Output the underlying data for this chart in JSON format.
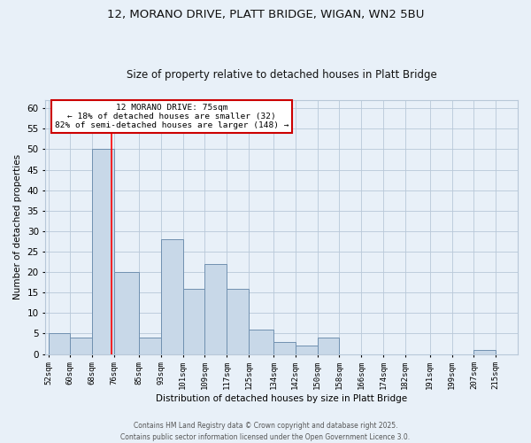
{
  "title1": "12, MORANO DRIVE, PLATT BRIDGE, WIGAN, WN2 5BU",
  "title2": "Size of property relative to detached houses in Platt Bridge",
  "xlabel": "Distribution of detached houses by size in Platt Bridge",
  "ylabel": "Number of detached properties",
  "bar_color": "#c8d8e8",
  "bar_edge_color": "#7090b0",
  "grid_color": "#b8c8d8",
  "background_color": "#e8f0f8",
  "red_line_x": 75,
  "annotation_text": "12 MORANO DRIVE: 75sqm\n← 18% of detached houses are smaller (32)\n82% of semi-detached houses are larger (148) →",
  "annotation_box_color": "#ffffff",
  "annotation_box_edge": "#cc0000",
  "annotation_text_color": "#000000",
  "footer_text": "Contains HM Land Registry data © Crown copyright and database right 2025.\nContains public sector information licensed under the Open Government Licence 3.0.",
  "bin_labels": [
    "52sqm",
    "60sqm",
    "68sqm",
    "76sqm",
    "85sqm",
    "93sqm",
    "101sqm",
    "109sqm",
    "117sqm",
    "125sqm",
    "134sqm",
    "142sqm",
    "150sqm",
    "158sqm",
    "166sqm",
    "174sqm",
    "182sqm",
    "191sqm",
    "199sqm",
    "207sqm",
    "215sqm"
  ],
  "bin_edges": [
    52,
    60,
    68,
    76,
    85,
    93,
    101,
    109,
    117,
    125,
    134,
    142,
    150,
    158,
    166,
    174,
    182,
    191,
    199,
    207,
    215,
    223
  ],
  "values": [
    5,
    4,
    50,
    20,
    4,
    28,
    16,
    22,
    16,
    6,
    3,
    2,
    4,
    0,
    0,
    0,
    0,
    0,
    0,
    1,
    0
  ],
  "ylim": [
    0,
    62
  ],
  "yticks": [
    0,
    5,
    10,
    15,
    20,
    25,
    30,
    35,
    40,
    45,
    50,
    55,
    60
  ]
}
